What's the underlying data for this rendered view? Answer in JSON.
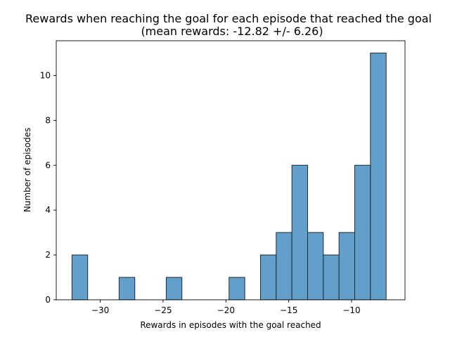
{
  "chart_data": {
    "type": "bar",
    "title": "Rewards when reaching the goal for each episode that reached the goal",
    "subtitle": "(mean rewards: -12.82 +/- 6.26)",
    "xlabel": "Rewards in episodes with the goal reached",
    "ylabel": "Number of episodes",
    "xlim": [
      -33.5,
      -5.75
    ],
    "ylim": [
      0,
      11.55
    ],
    "xticks": [
      {
        "value": -30,
        "label": "−30"
      },
      {
        "value": -25,
        "label": "−25"
      },
      {
        "value": -20,
        "label": "−20"
      },
      {
        "value": -15,
        "label": "−15"
      },
      {
        "value": -10,
        "label": "−10"
      }
    ],
    "yticks": [
      {
        "value": 0,
        "label": "0"
      },
      {
        "value": 2,
        "label": "2"
      },
      {
        "value": 4,
        "label": "4"
      },
      {
        "value": 6,
        "label": "6"
      },
      {
        "value": 8,
        "label": "8"
      },
      {
        "value": 10,
        "label": "10"
      }
    ],
    "bin_edges": [
      -32.25,
      -31.0,
      -29.75,
      -28.5,
      -27.25,
      -26.0,
      -24.75,
      -23.5,
      -22.25,
      -21.0,
      -19.75,
      -18.5,
      -17.25,
      -16.0,
      -14.75,
      -13.5,
      -12.25,
      -11.0,
      -9.75,
      -8.5,
      -7.25
    ],
    "counts": [
      2,
      0,
      0,
      1,
      0,
      0,
      1,
      0,
      0,
      0,
      1,
      0,
      2,
      3,
      6,
      3,
      2,
      3,
      6,
      11
    ],
    "bar_color": "#629fca",
    "edge_color": "#1f2b36",
    "grid": false,
    "legend": "none"
  }
}
